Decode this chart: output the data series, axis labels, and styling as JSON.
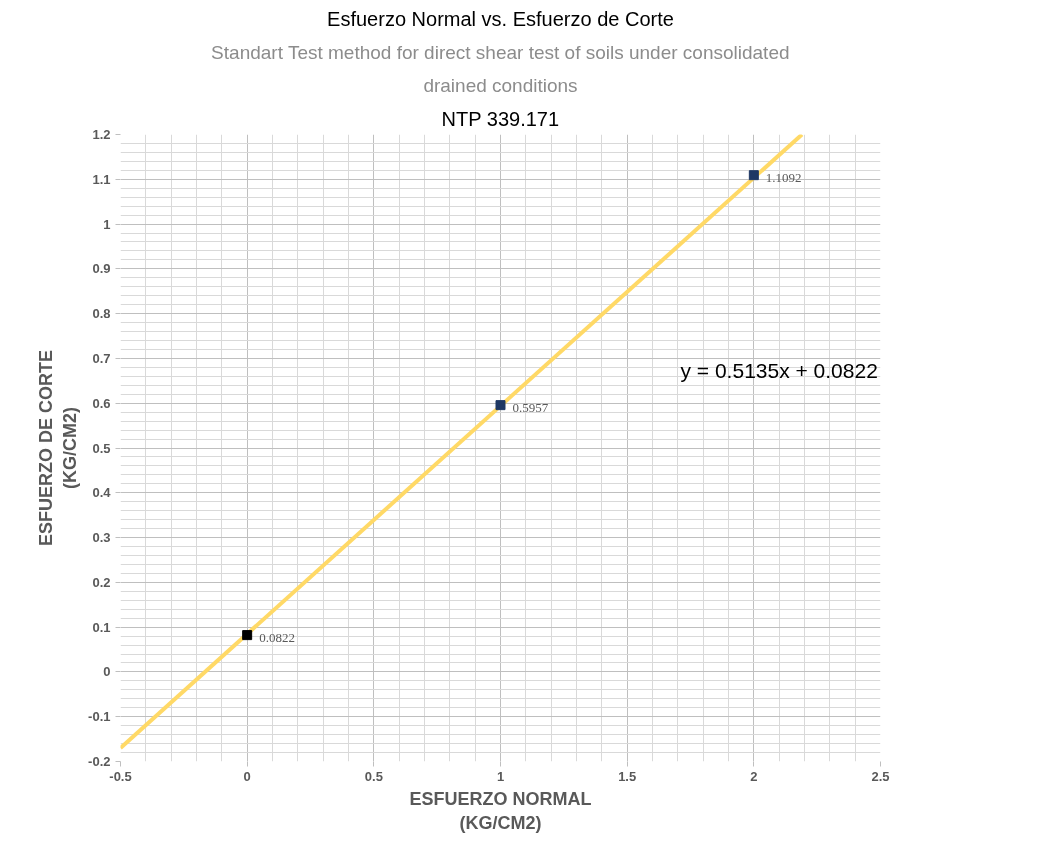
{
  "chart_data": {
    "type": "scatter",
    "title": "Esfuerzo Normal vs. Esfuerzo de Corte",
    "subtitle": [
      "Standart Test method for direct shear test of soils under consolidated",
      "drained conditions",
      "NTP 339.171"
    ],
    "xlabel": "ESFUERZO NORMAL\n(KG/CM2)",
    "ylabel": "ESFUERZO DE CORTE\n(KG/CM2)",
    "series": [
      {
        "x": [
          0,
          1,
          2
        ],
        "values": [
          0.0822,
          0.5957,
          1.1092
        ],
        "colors": [
          "#000000",
          "#1f3864",
          "#1f3864"
        ],
        "data_labels": true,
        "marker": "square"
      },
      {
        "type": "line",
        "x": [
          -0.5,
          2.19
        ],
        "values": [
          -0.17,
          1.2
        ],
        "color": "#ffd966",
        "line_style": "solid"
      }
    ],
    "annotations": [
      "y = 0.5135x + 0.0822"
    ],
    "xlim": [
      -0.5,
      2.5
    ],
    "xticks": [
      -0.5,
      0,
      0.5,
      1,
      1.5,
      2,
      2.5
    ],
    "ylim": [
      -0.2,
      1.2
    ],
    "yticks": [
      -0.2,
      -0.1,
      0,
      0.1,
      0.2,
      0.3,
      0.4,
      0.5,
      0.6,
      0.7,
      0.8,
      0.9,
      1,
      1.1,
      1.2
    ],
    "grid": true
  }
}
